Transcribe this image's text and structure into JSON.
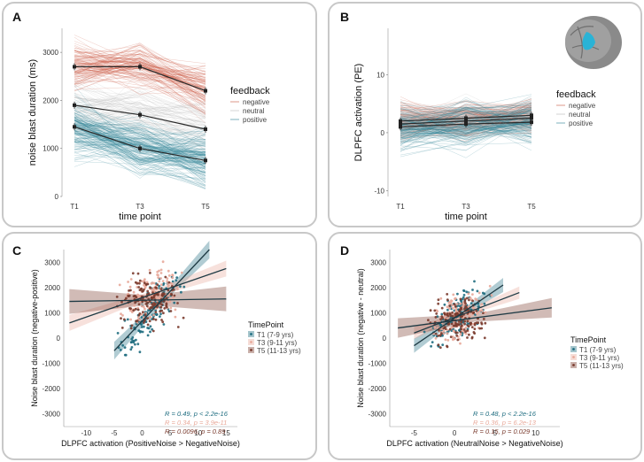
{
  "colors": {
    "negative": "#c8523c",
    "neutral": "#b8b8b8",
    "positive": "#2a7f94",
    "T1": "#1f6d80",
    "T3": "#e8a99a",
    "T5": "#7a3b2e",
    "mean_line": "#333333"
  },
  "chart_data": [
    {
      "panel": "A",
      "type": "line",
      "ylabel": "noise blast duration (ms)",
      "xlabel": "time point",
      "categories": [
        "T1",
        "T3",
        "T5"
      ],
      "yticks": [
        0,
        1000,
        2000,
        3000
      ],
      "ylim": [
        0,
        3500
      ],
      "legend": {
        "title": "feedback",
        "items": [
          "negative",
          "neutral",
          "positive"
        ]
      },
      "series": [
        {
          "name": "negative",
          "values": [
            2700,
            2700,
            2200
          ]
        },
        {
          "name": "neutral",
          "values": [
            1900,
            1700,
            1400
          ]
        },
        {
          "name": "positive",
          "values": [
            1450,
            1000,
            750
          ]
        }
      ]
    },
    {
      "panel": "B",
      "type": "line",
      "ylabel": "DLPFC activation (PE)",
      "xlabel": "time point",
      "categories": [
        "T1",
        "T3",
        "T5"
      ],
      "yticks": [
        -10,
        0,
        10
      ],
      "ylim": [
        -11,
        18
      ],
      "legend": {
        "title": "feedback",
        "items": [
          "negative",
          "neutral",
          "positive"
        ]
      },
      "series": [
        {
          "name": "negative",
          "values": [
            2.0,
            2.5,
            3.0
          ]
        },
        {
          "name": "neutral",
          "values": [
            1.5,
            2.0,
            2.5
          ]
        },
        {
          "name": "positive",
          "values": [
            1.0,
            1.5,
            1.8
          ]
        }
      ]
    },
    {
      "panel": "C",
      "type": "scatter",
      "ylabel": "Noise blast duration (negative-positive)",
      "xlabel": "DLPFC activation (PositiveNoise > NegativeNoise)",
      "xticks": [
        -10,
        -5,
        0,
        5,
        10,
        15
      ],
      "yticks": [
        -3000,
        -2000,
        -1000,
        0,
        1000,
        2000,
        3000
      ],
      "xlim": [
        -14,
        17
      ],
      "ylim": [
        -3500,
        3500
      ],
      "legend": {
        "title": "TimePoint",
        "items": [
          "T1 (7-9 yrs)",
          "T3 (9-11 yrs)",
          "T5 (11-13 yrs)"
        ]
      },
      "fits": [
        {
          "name": "T1",
          "x": [
            -5,
            12
          ],
          "y": [
            -500,
            3500
          ]
        },
        {
          "name": "T3",
          "x": [
            -13,
            15
          ],
          "y": [
            600,
            2750
          ]
        },
        {
          "name": "T5",
          "x": [
            -13,
            15
          ],
          "y": [
            1450,
            1550
          ]
        }
      ],
      "annotations": [
        {
          "R": "R = 0.49,",
          "p": "p < 2.2e-16",
          "series": "T1"
        },
        {
          "R": "R = 0.34,",
          "p": "p = 3.9e-11",
          "series": "T3"
        },
        {
          "R": "R = 0.0096,",
          "p": "p = 0.89",
          "series": "T5"
        }
      ]
    },
    {
      "panel": "D",
      "type": "scatter",
      "ylabel": "Noise blast duration (negative - neutral)",
      "xlabel": "DLPFC activation (NeutralNoise > NegativeNoise)",
      "xticks": [
        -5,
        0,
        5,
        10
      ],
      "yticks": [
        -3000,
        -2000,
        -1000,
        0,
        1000,
        2000,
        3000
      ],
      "xlim": [
        -8,
        13
      ],
      "ylim": [
        -3500,
        3500
      ],
      "legend": {
        "title": "TimePoint",
        "items": [
          "T1 (7-9 yrs)",
          "T3 (9-11 yrs)",
          "T5 (11-13 yrs)"
        ]
      },
      "fits": [
        {
          "name": "T1",
          "x": [
            -5,
            6
          ],
          "y": [
            -300,
            2100
          ]
        },
        {
          "name": "T3",
          "x": [
            -5,
            8
          ],
          "y": [
            200,
            1800
          ]
        },
        {
          "name": "T5",
          "x": [
            -7,
            12
          ],
          "y": [
            400,
            1200
          ]
        }
      ],
      "annotations": [
        {
          "R": "R = 0.48,",
          "p": "p < 2.2e-16",
          "series": "T1"
        },
        {
          "R": "R = 0.36,",
          "p": "p = 6.2e-13",
          "series": "T3"
        },
        {
          "R": "R = 0.15,",
          "p": "p = 0.029",
          "series": "T5"
        }
      ]
    }
  ],
  "panels": {
    "a": "A",
    "b": "B",
    "c": "C",
    "d": "D"
  }
}
